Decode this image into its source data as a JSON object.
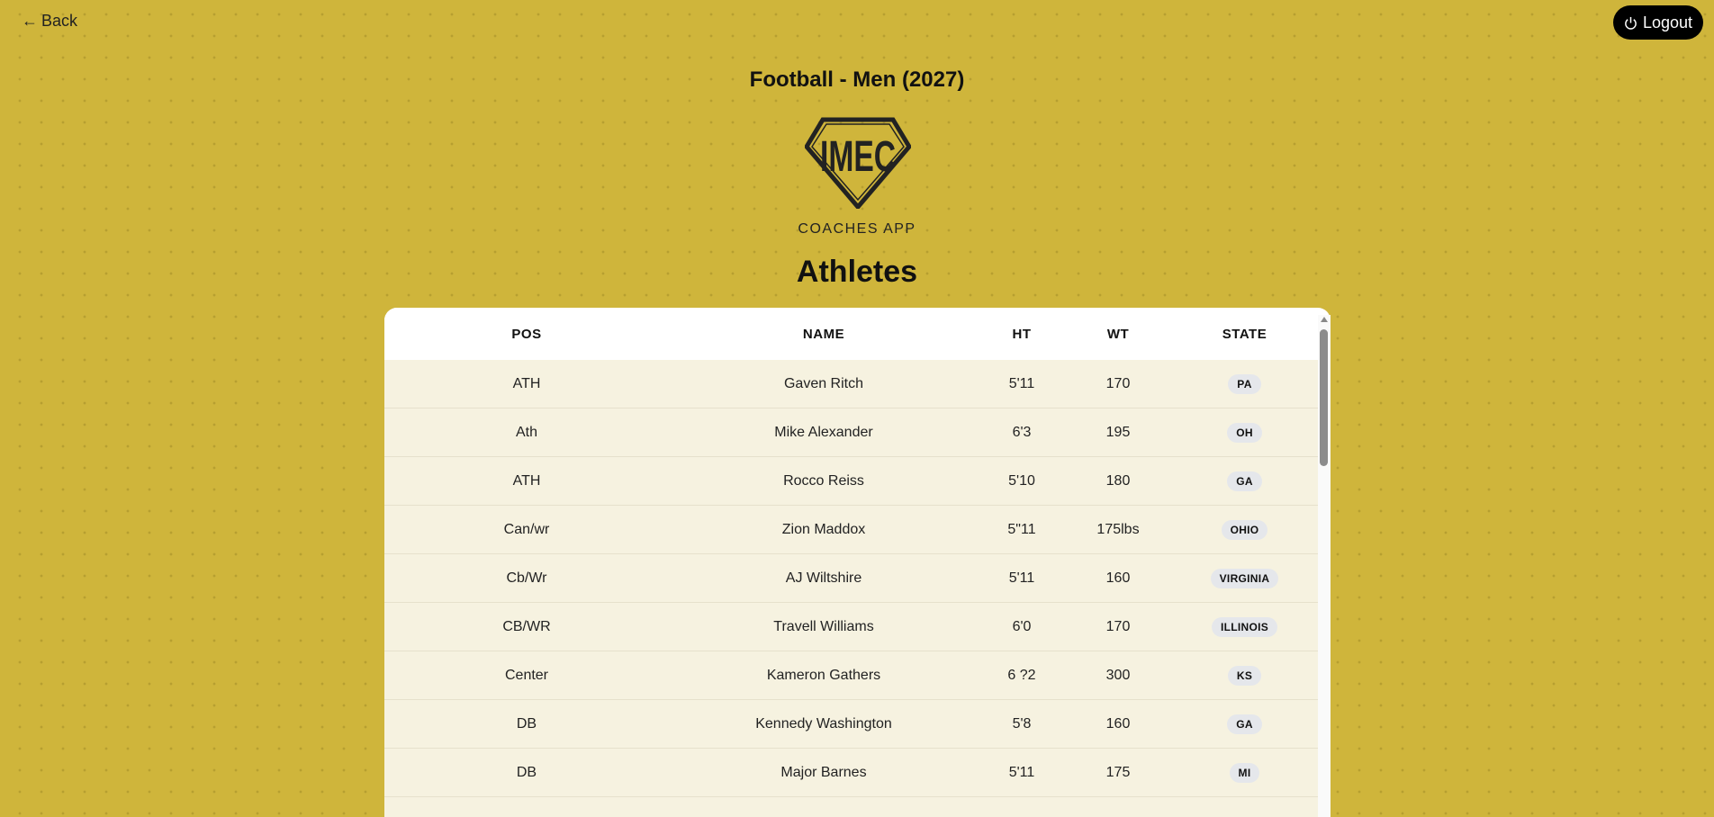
{
  "nav": {
    "back_label": "Back",
    "logout_label": "Logout"
  },
  "header": {
    "title": "Football - Men (2027)",
    "logo_text": "IMEC",
    "subtitle": "COACHES APP",
    "heading": "Athletes"
  },
  "colors": {
    "background": "#cfb53b",
    "row": "#f6f2e0",
    "badge": "#e5e7eb",
    "logout": "#000000"
  },
  "table": {
    "columns": [
      "POS",
      "NAME",
      "HT",
      "WT",
      "STATE"
    ],
    "rows": [
      {
        "pos": "ATH",
        "name": "Gaven Ritch",
        "ht": "5'11",
        "wt": "170",
        "state": "PA"
      },
      {
        "pos": "Ath",
        "name": "Mike Alexander",
        "ht": "6'3",
        "wt": "195",
        "state": "OH"
      },
      {
        "pos": "ATH",
        "name": "Rocco Reiss",
        "ht": "5'10",
        "wt": "180",
        "state": "GA"
      },
      {
        "pos": "Can/wr",
        "name": "Zion Maddox",
        "ht": "5\"11",
        "wt": "175lbs",
        "state": "OHIO"
      },
      {
        "pos": "Cb/Wr",
        "name": "AJ Wiltshire",
        "ht": "5'11",
        "wt": "160",
        "state": "VIRGINIA"
      },
      {
        "pos": "CB/WR",
        "name": "Travell Williams",
        "ht": "6'0",
        "wt": "170",
        "state": "ILLINOIS"
      },
      {
        "pos": "Center",
        "name": "Kameron Gathers",
        "ht": "6 ?2",
        "wt": "300",
        "state": "KS"
      },
      {
        "pos": "DB",
        "name": "Kennedy Washington",
        "ht": "5'8",
        "wt": "160",
        "state": "GA"
      },
      {
        "pos": "DB",
        "name": "Major Barnes",
        "ht": "5'11",
        "wt": "175",
        "state": "MI"
      }
    ]
  }
}
